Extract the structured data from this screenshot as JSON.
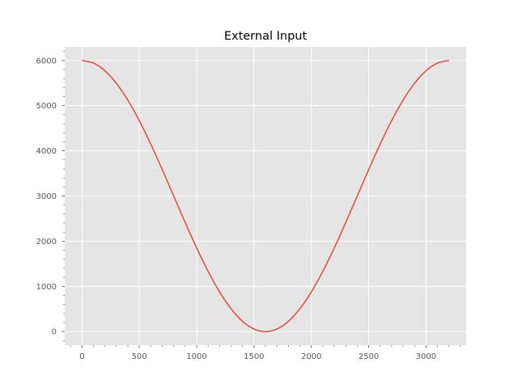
{
  "chart_data": {
    "type": "line",
    "title": "External Input",
    "xlabel": "",
    "ylabel": "",
    "xlim": [
      -150,
      3350
    ],
    "ylim": [
      -300,
      6300
    ],
    "xticks": [
      0,
      500,
      1000,
      1500,
      2000,
      2500,
      3000
    ],
    "yticks": [
      0,
      1000,
      2000,
      3000,
      4000,
      5000,
      6000
    ],
    "grid": true,
    "minor_ticks": true,
    "series": [
      {
        "color": "#e24a33",
        "x": [
          0,
          100,
          200,
          300,
          400,
          500,
          600,
          700,
          800,
          900,
          1000,
          1100,
          1200,
          1300,
          1400,
          1500,
          1600,
          1700,
          1800,
          1900,
          2000,
          2100,
          2200,
          2300,
          2400,
          2500,
          2600,
          2700,
          2800,
          2900,
          3000,
          3100,
          3200
        ],
        "y": [
          6000,
          5942,
          5772,
          5494,
          5121,
          4667,
          4148,
          3585,
          3000,
          2415,
          1852,
          1333,
          879,
          506,
          228,
          58,
          0,
          58,
          228,
          506,
          879,
          1333,
          1852,
          2415,
          3000,
          3585,
          4148,
          4667,
          5121,
          5494,
          5772,
          5942,
          6000
        ]
      }
    ]
  },
  "style": {
    "plot_background": "#e5e5e5",
    "grid_color": "#ffffff",
    "tick_label_color": "#555555",
    "title_color": "#000000"
  }
}
